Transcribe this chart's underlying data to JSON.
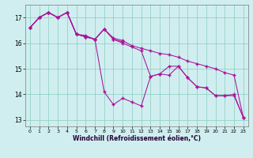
{
  "xlabel": "Windchill (Refroidissement éolien,°C)",
  "bg_color": "#d0eef0",
  "line_color": "#aa1199",
  "grid_color": "#88ccbb",
  "xlim": [
    -0.5,
    23.5
  ],
  "ylim": [
    12.75,
    17.5
  ],
  "yticks": [
    13,
    14,
    15,
    16,
    17
  ],
  "xticks": [
    0,
    1,
    2,
    3,
    4,
    5,
    6,
    7,
    8,
    9,
    10,
    11,
    12,
    13,
    14,
    15,
    16,
    17,
    18,
    19,
    20,
    21,
    22,
    23
  ],
  "series1": [
    16.6,
    17.0,
    17.2,
    17.0,
    17.2,
    16.35,
    16.25,
    16.15,
    14.1,
    13.6,
    13.85,
    13.7,
    13.55,
    14.7,
    14.8,
    15.1,
    15.1,
    14.65,
    14.3,
    14.25,
    13.95,
    13.95,
    14.0,
    13.1
  ],
  "series2": [
    16.6,
    17.0,
    17.2,
    17.0,
    17.2,
    16.35,
    16.25,
    16.15,
    16.55,
    16.15,
    16.05,
    null,
    null,
    null,
    null,
    null,
    null,
    null,
    null,
    null,
    null,
    null,
    null,
    null
  ],
  "series3": [
    16.6,
    17.0,
    17.2,
    17.0,
    17.2,
    16.35,
    16.3,
    16.15,
    16.55,
    16.2,
    16.1,
    15.9,
    15.8,
    15.7,
    15.6,
    15.55,
    15.45,
    15.3,
    15.2,
    15.1,
    15.0,
    14.85,
    14.75,
    13.1
  ],
  "series4": [
    16.6,
    17.0,
    17.2,
    17.0,
    17.2,
    16.35,
    16.25,
    16.15,
    16.55,
    16.15,
    16.0,
    15.85,
    15.7,
    14.7,
    14.8,
    14.75,
    15.1,
    14.65,
    14.3,
    14.25,
    13.95,
    13.95,
    13.95,
    13.1
  ]
}
